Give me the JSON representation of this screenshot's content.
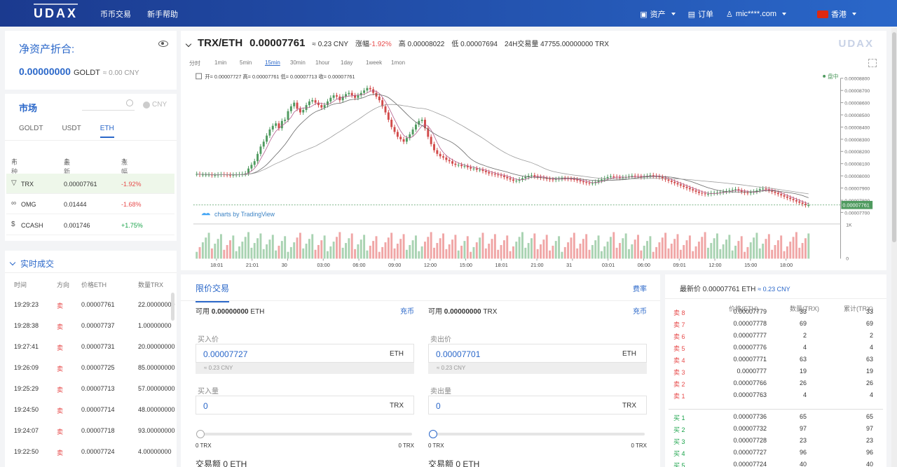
{
  "brand": {
    "logo": "UDAX",
    "watermark": "UDAX"
  },
  "topnav": {
    "items": [
      "币币交易",
      "新手帮助"
    ]
  },
  "topright": {
    "assets": "资产",
    "orders": "订单",
    "user": "mic****.com",
    "region": "香港"
  },
  "asset": {
    "title": "净资产折合:",
    "value": "0.00000000",
    "unit": "GOLDT",
    "cny": "≈ 0.00 CNY"
  },
  "market": {
    "title": "市场",
    "cny_toggle": "CNY",
    "tabs": [
      "GOLDT",
      "USDT",
      "ETH"
    ],
    "active_tab": "ETH",
    "headers": {
      "coin": "币种",
      "price": "最新价",
      "change": "涨幅"
    },
    "rows": [
      {
        "coin": "TRX",
        "price": "0.00007761",
        "change": "-1.92%",
        "icon": "tron-icon"
      },
      {
        "coin": "OMG",
        "price": "0.01444",
        "change": "-1.68%",
        "icon": "omg-icon"
      },
      {
        "coin": "CCASH",
        "price": "0.001746",
        "change": "+1.75%",
        "icon": "dollar-icon"
      }
    ]
  },
  "trades": {
    "title": "实时成交",
    "headers": {
      "time": "时间",
      "dir": "方向",
      "price": "价格ETH",
      "qty": "数量TRX"
    },
    "rows": [
      {
        "time": "19:29:23",
        "dir": "卖",
        "price": "0.00007761",
        "qty": "22.00000000"
      },
      {
        "time": "19:28:38",
        "dir": "卖",
        "price": "0.00007737",
        "qty": "1.00000000"
      },
      {
        "time": "19:27:41",
        "dir": "卖",
        "price": "0.00007731",
        "qty": "20.00000000"
      },
      {
        "time": "19:26:09",
        "dir": "卖",
        "price": "0.00007725",
        "qty": "85.00000000"
      },
      {
        "time": "19:25:29",
        "dir": "卖",
        "price": "0.00007713",
        "qty": "57.00000000"
      },
      {
        "time": "19:24:50",
        "dir": "卖",
        "price": "0.00007714",
        "qty": "48.00000000"
      },
      {
        "time": "19:24:07",
        "dir": "卖",
        "price": "0.00007718",
        "qty": "93.00000000"
      },
      {
        "time": "19:22:50",
        "dir": "卖",
        "price": "0.00007724",
        "qty": "4.00000000"
      }
    ]
  },
  "ticker": {
    "pair": "TRX/ETH",
    "price": "0.00007761",
    "cny": "≈ 0.23 CNY",
    "change_label": "涨幅",
    "change": "-1.92%",
    "high_label": "高",
    "high": "0.00008022",
    "low_label": "低",
    "low": "0.00007694",
    "vol_label": "24H交易量",
    "vol": "47755.00000000 TRX"
  },
  "timeframes": [
    "分时",
    "1min",
    "5min",
    "15min",
    "30min",
    "1hour",
    "1day",
    "1week",
    "1mon"
  ],
  "active_timeframe": "15min",
  "chart_data": {
    "type": "candlestick",
    "ohlc_legend": "开= 0.00007727 高= 0.00007761 低= 0.00007713 收= 0.00007761",
    "status": "盘中",
    "attribution": "charts by TradingView",
    "last_price_label": "0.00007761",
    "ylim": [
      7.6e-05,
      8.8e-05
    ],
    "y_ticks": [
      "0.00008800",
      "0.00008700",
      "0.00008600",
      "0.00008500",
      "0.00008400",
      "0.00008300",
      "0.00008200",
      "0.00008100",
      "0.00008000",
      "0.00007900",
      "0.00007800",
      "0.00007700"
    ],
    "volume_ticks": [
      "1K",
      "0"
    ],
    "x_ticks": [
      "18:01",
      "21:01",
      "30",
      "03:00",
      "06:00",
      "09:00",
      "12:00",
      "15:00",
      "18:01",
      "21:00",
      "31",
      "03:01",
      "06:00",
      "09:01",
      "12:00",
      "15:00",
      "18:00"
    ],
    "close": [
      8.015e-05,
      8.01e-05,
      8.01e-05,
      8.01e-05,
      8.01e-05,
      8.005e-05,
      8.005e-05,
      8.01e-05,
      8.012e-05,
      8.01e-05,
      8.008e-05,
      8.005e-05,
      8.008e-05,
      8.01e-05,
      8.012e-05,
      8.015e-05,
      8.02e-05,
      8.06e-05,
      8.09e-05,
      8.12e-05,
      8.18e-05,
      8.24e-05,
      8.28e-05,
      8.33e-05,
      8.38e-05,
      8.41e-05,
      8.43e-05,
      8.39e-05,
      8.45e-05,
      8.46e-05,
      8.53e-05,
      8.57e-05,
      8.6e-05,
      8.55e-05,
      8.52e-05,
      8.54e-05,
      8.58e-05,
      8.61e-05,
      8.62e-05,
      8.6e-05,
      8.58e-05,
      8.56e-05,
      8.58e-05,
      8.61e-05,
      8.64e-05,
      8.66e-05,
      8.65e-05,
      8.62e-05,
      8.65e-05,
      8.67e-05,
      8.68e-05,
      8.66e-05,
      8.64e-05,
      8.66e-05,
      8.68e-05,
      8.7e-05,
      8.72e-05,
      8.71e-05,
      8.68e-05,
      8.65e-05,
      8.62e-05,
      8.57e-05,
      8.52e-05,
      8.46e-05,
      8.4e-05,
      8.36e-05,
      8.32e-05,
      8.3e-05,
      8.28e-05,
      8.31e-05,
      8.34e-05,
      8.38e-05,
      8.42e-05,
      8.45e-05,
      8.46e-05,
      8.39e-05,
      8.32e-05,
      8.26e-05,
      8.21e-05,
      8.18e-05,
      8.16e-05,
      8.15e-05,
      8.13e-05,
      8.12e-05,
      8.1e-05,
      8.09e-05,
      8.09e-05,
      8.08e-05,
      8.08e-05,
      8.07e-05,
      8.06e-05,
      8.06e-05,
      8.05e-05,
      8.05e-05,
      8.04e-05,
      8.03e-05,
      8.02e-05,
      8.015e-05,
      8.01e-05,
      8.005e-05,
      8e-05,
      7.99e-05,
      7.98e-05,
      7.97e-05,
      7.96e-05,
      7.96e-05,
      7.97e-05,
      7.98e-05,
      7.99e-05,
      8e-05,
      8.005e-05,
      7.995e-05,
      7.99e-05,
      7.985e-05,
      7.98e-05,
      7.975e-05,
      7.97e-05,
      7.968e-05,
      7.972e-05,
      7.975e-05,
      7.98e-05,
      7.978e-05,
      7.975e-05,
      7.972e-05,
      7.97e-05,
      7.962e-05,
      7.955e-05,
      7.948e-05,
      7.942e-05,
      7.94e-05,
      7.94e-05,
      7.95e-05,
      7.96e-05,
      7.97e-05,
      7.98e-05,
      7.99e-05,
      7.995e-05,
      7.992e-05,
      7.988e-05,
      7.985e-05,
      7.988e-05,
      7.99e-05,
      7.995e-05,
      8e-05,
      7.998e-05,
      7.995e-05,
      7.99e-05,
      7.995e-05,
      8e-05,
      8.005e-05,
      8e-05,
      7.995e-05,
      7.99e-05,
      7.98e-05,
      7.97e-05,
      7.96e-05,
      7.95e-05,
      7.94e-05,
      7.93e-05,
      7.92e-05,
      7.91e-05,
      7.9e-05,
      7.89e-05,
      7.88e-05,
      7.87e-05,
      7.86e-05,
      7.855e-05,
      7.85e-05,
      7.852e-05,
      7.858e-05,
      7.86e-05,
      7.862e-05,
      7.865e-05,
      7.87e-05,
      7.875e-05,
      7.88e-05,
      7.885e-05,
      7.89e-05,
      7.88e-05,
      7.87e-05,
      7.862e-05,
      7.86e-05,
      7.865e-05,
      7.87e-05,
      7.88e-05,
      7.89e-05,
      7.895e-05,
      7.89e-05,
      7.88e-05,
      7.87e-05,
      7.86e-05,
      7.85e-05,
      7.84e-05,
      7.83e-05,
      7.82e-05,
      7.81e-05,
      7.8e-05,
      7.79e-05,
      7.78e-05,
      7.77e-05,
      7.76e-05,
      7.76e-05
    ]
  },
  "trade": {
    "tab": "限价交易",
    "fee": "费率",
    "buy": {
      "avail_label": "可用",
      "avail": "0.00000000",
      "avail_unit": "ETH",
      "deposit": "充币",
      "price_label": "买入价",
      "price": "0.00007727",
      "price_unit": "ETH",
      "price_cny": "≈ 0.23 CNY",
      "qty_label": "买入量",
      "qty": "0",
      "qty_unit": "TRX",
      "min": "0 TRX",
      "max": "0 TRX",
      "amount": "交易额 0 ETH"
    },
    "sell": {
      "avail_label": "可用",
      "avail": "0.00000000",
      "avail_unit": "TRX",
      "deposit": "充币",
      "price_label": "卖出价",
      "price": "0.00007701",
      "price_unit": "ETH",
      "price_cny": "≈ 0.23 CNY",
      "qty_label": "卖出量",
      "qty": "0",
      "qty_unit": "TRX",
      "min": "0 TRX",
      "max": "0 TRX",
      "amount": "交易额 0 ETH"
    }
  },
  "book": {
    "last_label": "最新价",
    "last": "0.00007761 ETH",
    "last_cny": "≈ 0.23 CNY",
    "headers": {
      "price": "价格(ETH)",
      "qty": "数量(TRX)",
      "total": "累计(TRX)"
    },
    "asks": [
      {
        "label": "卖 8",
        "price": "0.00007779",
        "qty": "33",
        "total": "33"
      },
      {
        "label": "卖 7",
        "price": "0.00007778",
        "qty": "69",
        "total": "69"
      },
      {
        "label": "卖 6",
        "price": "0.00007777",
        "qty": "2",
        "total": "2"
      },
      {
        "label": "卖 5",
        "price": "0.00007776",
        "qty": "4",
        "total": "4"
      },
      {
        "label": "卖 4",
        "price": "0.00007771",
        "qty": "63",
        "total": "63"
      },
      {
        "label": "卖 3",
        "price": "0.0000777",
        "qty": "19",
        "total": "19"
      },
      {
        "label": "卖 2",
        "price": "0.00007766",
        "qty": "26",
        "total": "26"
      },
      {
        "label": "卖 1",
        "price": "0.00007763",
        "qty": "4",
        "total": "4"
      }
    ],
    "bids": [
      {
        "label": "买 1",
        "price": "0.00007736",
        "qty": "65",
        "total": "65"
      },
      {
        "label": "买 2",
        "price": "0.00007732",
        "qty": "97",
        "total": "97"
      },
      {
        "label": "买 3",
        "price": "0.00007728",
        "qty": "23",
        "total": "23"
      },
      {
        "label": "买 4",
        "price": "0.00007727",
        "qty": "96",
        "total": "96"
      },
      {
        "label": "买 5",
        "price": "0.00007724",
        "qty": "40",
        "total": "40"
      }
    ]
  }
}
